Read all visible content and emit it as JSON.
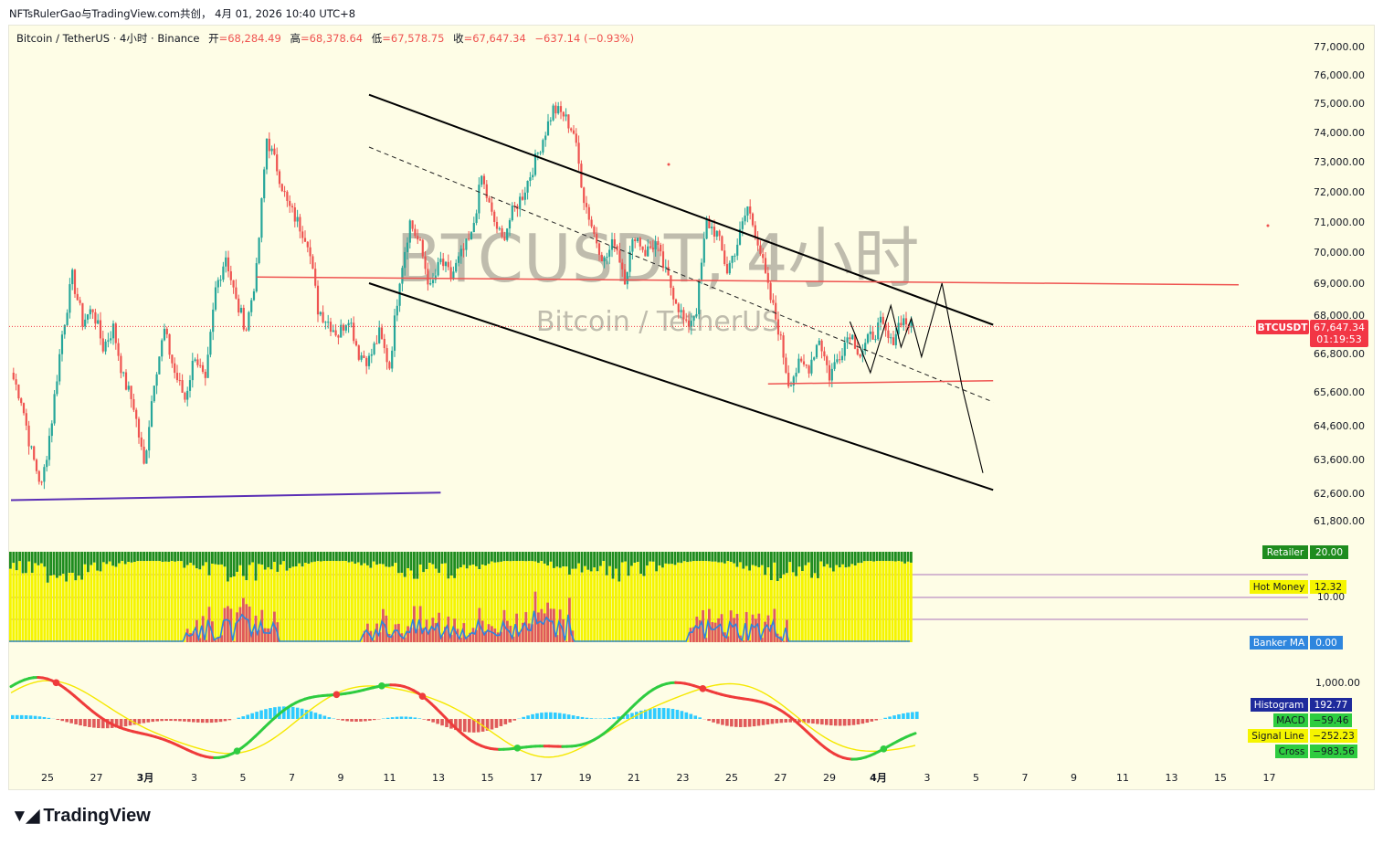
{
  "caption": "NFTsRulerGao与TradingView.com共创， 4月 01, 2026 10:40 UTC+8",
  "footer": {
    "brand": "TradingView"
  },
  "colors": {
    "up": "#26a69a",
    "down": "#ef5350",
    "bg": "#fefde6",
    "price_label": "#f23645"
  },
  "chart_data": {
    "type": "candlestick",
    "symbol": "BTCUSDT",
    "watermark_symbol": "BTCUSDT, 4小时",
    "watermark_name": "Bitcoin / TetherUS",
    "legend": {
      "name": "Bitcoin / TetherUS · 4小时 · Binance",
      "open_label": "开",
      "open": "=68,284.49",
      "high_label": "高",
      "high": "=68,378.64",
      "low_label": "低",
      "low": "=67,578.75",
      "close_label": "收",
      "close": "=67,647.34",
      "change": "−637.14 (−0.93%)"
    },
    "ylim": [
      61500,
      77500
    ],
    "y_ticks": [
      "77,000.00",
      "76,000.00",
      "75,000.00",
      "74,000.00",
      "73,000.00",
      "72,000.00",
      "71,000.00",
      "70,000.00",
      "69,000.00",
      "68,000.00",
      "66,800.00",
      "65,600.00",
      "64,600.00",
      "63,600.00",
      "62,600.00",
      "61,800.00"
    ],
    "y_tick_values": [
      77000,
      76000,
      75000,
      74000,
      73000,
      72000,
      71000,
      70000,
      69000,
      68000,
      66800,
      65600,
      64600,
      63600,
      62600,
      61800
    ],
    "x_ticks": [
      "25",
      "27",
      "3月",
      "3",
      "5",
      "7",
      "9",
      "11",
      "13",
      "15",
      "17",
      "19",
      "21",
      "23",
      "25",
      "27",
      "29",
      "4月",
      "3",
      "5",
      "7",
      "9",
      "11",
      "13",
      "15",
      "17"
    ],
    "price_label": {
      "symbol": "BTCUSDT",
      "value": "67,647.34",
      "countdown": "01:19:53"
    },
    "last_price": 67647.34,
    "path": [
      [
        0,
        66200
      ],
      [
        1,
        65400
      ],
      [
        2,
        63800
      ],
      [
        3,
        62800
      ],
      [
        4,
        64800
      ],
      [
        5,
        67400
      ],
      [
        6,
        69200
      ],
      [
        7,
        67800
      ],
      [
        8,
        68200
      ],
      [
        9,
        67000
      ],
      [
        10,
        67600
      ],
      [
        11,
        66000
      ],
      [
        12,
        65200
      ],
      [
        13,
        63400
      ],
      [
        14,
        66000
      ],
      [
        15,
        67500
      ],
      [
        16,
        66200
      ],
      [
        17,
        65400
      ],
      [
        18,
        66800
      ],
      [
        19,
        65800
      ],
      [
        20,
        68800
      ],
      [
        21,
        69900
      ],
      [
        22,
        68400
      ],
      [
        23,
        67600
      ],
      [
        24,
        69400
      ],
      [
        25,
        73800
      ],
      [
        26,
        72800
      ],
      [
        27,
        71600
      ],
      [
        28,
        71000
      ],
      [
        29,
        70400
      ],
      [
        30,
        68200
      ],
      [
        31,
        67800
      ],
      [
        32,
        67400
      ],
      [
        33,
        68000
      ],
      [
        34,
        66800
      ],
      [
        35,
        66600
      ],
      [
        36,
        67400
      ],
      [
        37,
        66400
      ],
      [
        38,
        69200
      ],
      [
        39,
        71000
      ],
      [
        40,
        70200
      ],
      [
        41,
        68800
      ],
      [
        42,
        69700
      ],
      [
        43,
        69200
      ],
      [
        44,
        69900
      ],
      [
        45,
        70500
      ],
      [
        46,
        72500
      ],
      [
        47,
        71200
      ],
      [
        48,
        70400
      ],
      [
        49,
        71300
      ],
      [
        50,
        71900
      ],
      [
        51,
        72800
      ],
      [
        52,
        73800
      ],
      [
        53,
        74800
      ],
      [
        54,
        74600
      ],
      [
        55,
        74000
      ],
      [
        56,
        71800
      ],
      [
        57,
        70600
      ],
      [
        58,
        69700
      ],
      [
        59,
        70400
      ],
      [
        60,
        69200
      ],
      [
        61,
        70600
      ],
      [
        62,
        70000
      ],
      [
        63,
        70300
      ],
      [
        64,
        69300
      ],
      [
        65,
        68500
      ],
      [
        66,
        67600
      ],
      [
        67,
        68200
      ],
      [
        68,
        71000
      ],
      [
        69,
        70600
      ],
      [
        70,
        69400
      ],
      [
        71,
        70300
      ],
      [
        72,
        71500
      ],
      [
        73,
        70400
      ],
      [
        74,
        68800
      ],
      [
        75,
        67600
      ],
      [
        76,
        65900
      ],
      [
        77,
        66400
      ],
      [
        78,
        66400
      ],
      [
        79,
        67300
      ],
      [
        80,
        66100
      ],
      [
        81,
        66800
      ],
      [
        82,
        67500
      ],
      [
        83,
        66800
      ],
      [
        84,
        67300
      ],
      [
        85,
        67700
      ],
      [
        86,
        67100
      ],
      [
        87,
        67900
      ],
      [
        88,
        67650
      ]
    ],
    "overlays": {
      "upper_channel": [
        [
          35,
          75300
        ],
        [
          96,
          67700
        ]
      ],
      "lower_channel": [
        [
          35,
          69000
        ],
        [
          96,
          62700
        ]
      ],
      "mid_channel": [
        [
          35,
          73500
        ],
        [
          96,
          65300
        ]
      ],
      "resistance": [
        [
          24,
          69200
        ],
        [
          120,
          68950
        ]
      ],
      "support": [
        [
          74,
          65850
        ],
        [
          96,
          65950
        ]
      ],
      "base_line": [
        [
          0,
          62400
        ],
        [
          42,
          62620
        ]
      ],
      "projection": [
        [
          82,
          67800
        ],
        [
          84,
          66200
        ],
        [
          86,
          68300
        ],
        [
          87,
          67000
        ],
        [
          88,
          67900
        ],
        [
          89,
          66700
        ],
        [
          91,
          69000
        ],
        [
          93,
          65700
        ],
        [
          95,
          63200
        ]
      ]
    },
    "panels": [
      {
        "name": "money_flow",
        "labels": [
          {
            "name": "Retailer",
            "value": "20.00"
          },
          {
            "name": "Hot Money",
            "value": "12.32"
          },
          {
            "name": "Banker MA",
            "value": "0.00"
          }
        ],
        "axis_label": "10.00"
      },
      {
        "name": "macd",
        "axis_label": "1,000.00",
        "labels": [
          {
            "name": "Histogram",
            "value": "192.77"
          },
          {
            "name": "MACD",
            "value": "−59.46"
          },
          {
            "name": "Signal Line",
            "value": "−252.23"
          },
          {
            "name": "Cross",
            "value": "−983.56"
          }
        ]
      }
    ]
  }
}
